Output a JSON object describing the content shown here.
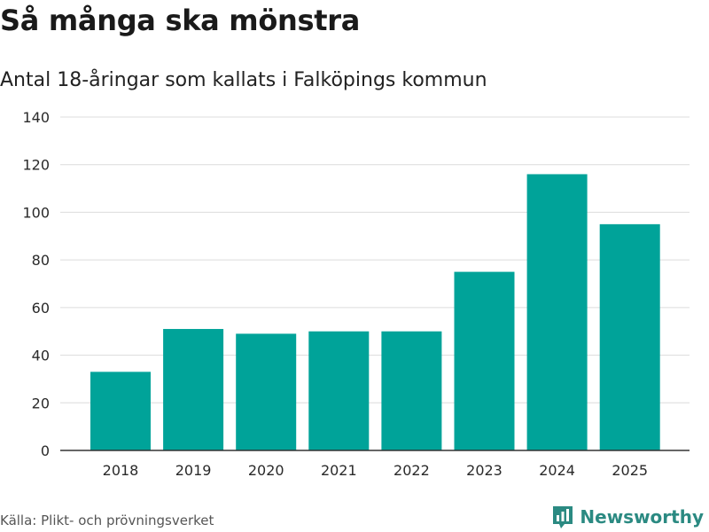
{
  "chart_data": {
    "type": "bar",
    "title": "Så många ska mönstra",
    "subtitle": "Antal 18-åringar som kallats i Falköpings kommun",
    "categories": [
      "2018",
      "2019",
      "2020",
      "2021",
      "2022",
      "2023",
      "2024",
      "2025"
    ],
    "values": [
      33,
      51,
      49,
      50,
      50,
      75,
      116,
      95
    ],
    "yticks": [
      "0",
      "20",
      "40",
      "60",
      "80",
      "100",
      "120",
      "140"
    ],
    "ylim": [
      0,
      140
    ],
    "xlabel": "",
    "ylabel": "",
    "grid": true
  },
  "footer": {
    "source": "Källa: Plikt- och prövningsverket",
    "brand": "Newsworthy"
  },
  "colors": {
    "bar": "#00a399",
    "grid": "#dcdcdc",
    "axis": "#333333",
    "brand": "#2b8a82"
  }
}
